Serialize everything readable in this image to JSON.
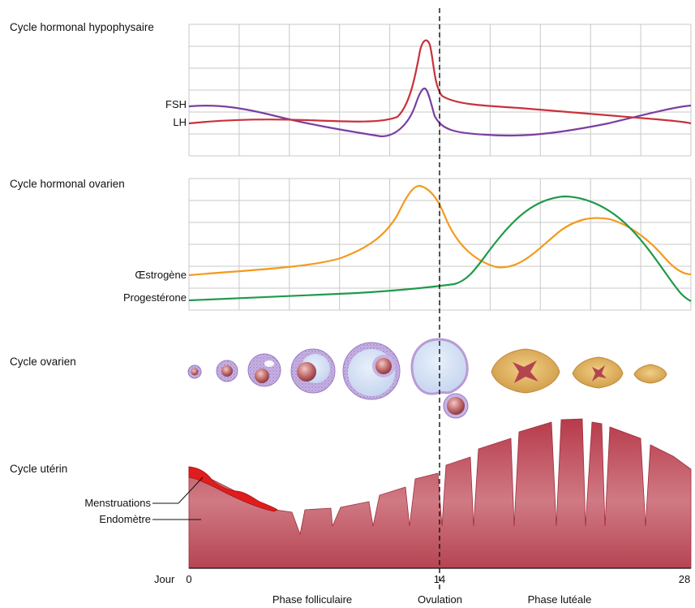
{
  "sections": {
    "pituitary": {
      "title": "Cycle hormonal hypophysaire",
      "curves": {
        "fsh": "FSH",
        "lh": "LH"
      }
    },
    "ovarian_hormones": {
      "title": "Cycle hormonal ovarien",
      "curves": {
        "estrogen": "Œstrogène",
        "progesterone": "Progestérone"
      }
    },
    "ovarian": {
      "title": "Cycle ovarien"
    },
    "uterine": {
      "title": "Cycle utérin",
      "layers": {
        "menstruation": "Menstruations",
        "endometrium": "Endomètre"
      }
    }
  },
  "axis": {
    "label": "Jour",
    "ticks": [
      "0",
      "14",
      "28"
    ],
    "range": [
      0,
      28
    ],
    "ovulation_day": 14
  },
  "phases": {
    "follicular": "Phase folliculaire",
    "ovulation": "Ovulation",
    "luteal": "Phase lutéale"
  },
  "colors": {
    "fsh": "#c8323a",
    "lh": "#7b3fa0",
    "estrogen": "#f39a1e",
    "progesterone": "#1f9a4a",
    "endometrium": "#b83848",
    "menstruation": "#e01c1c",
    "grid": "#c8c8c8",
    "follicle": "#b89ad6",
    "corpus_luteum": "#d9a550"
  }
}
